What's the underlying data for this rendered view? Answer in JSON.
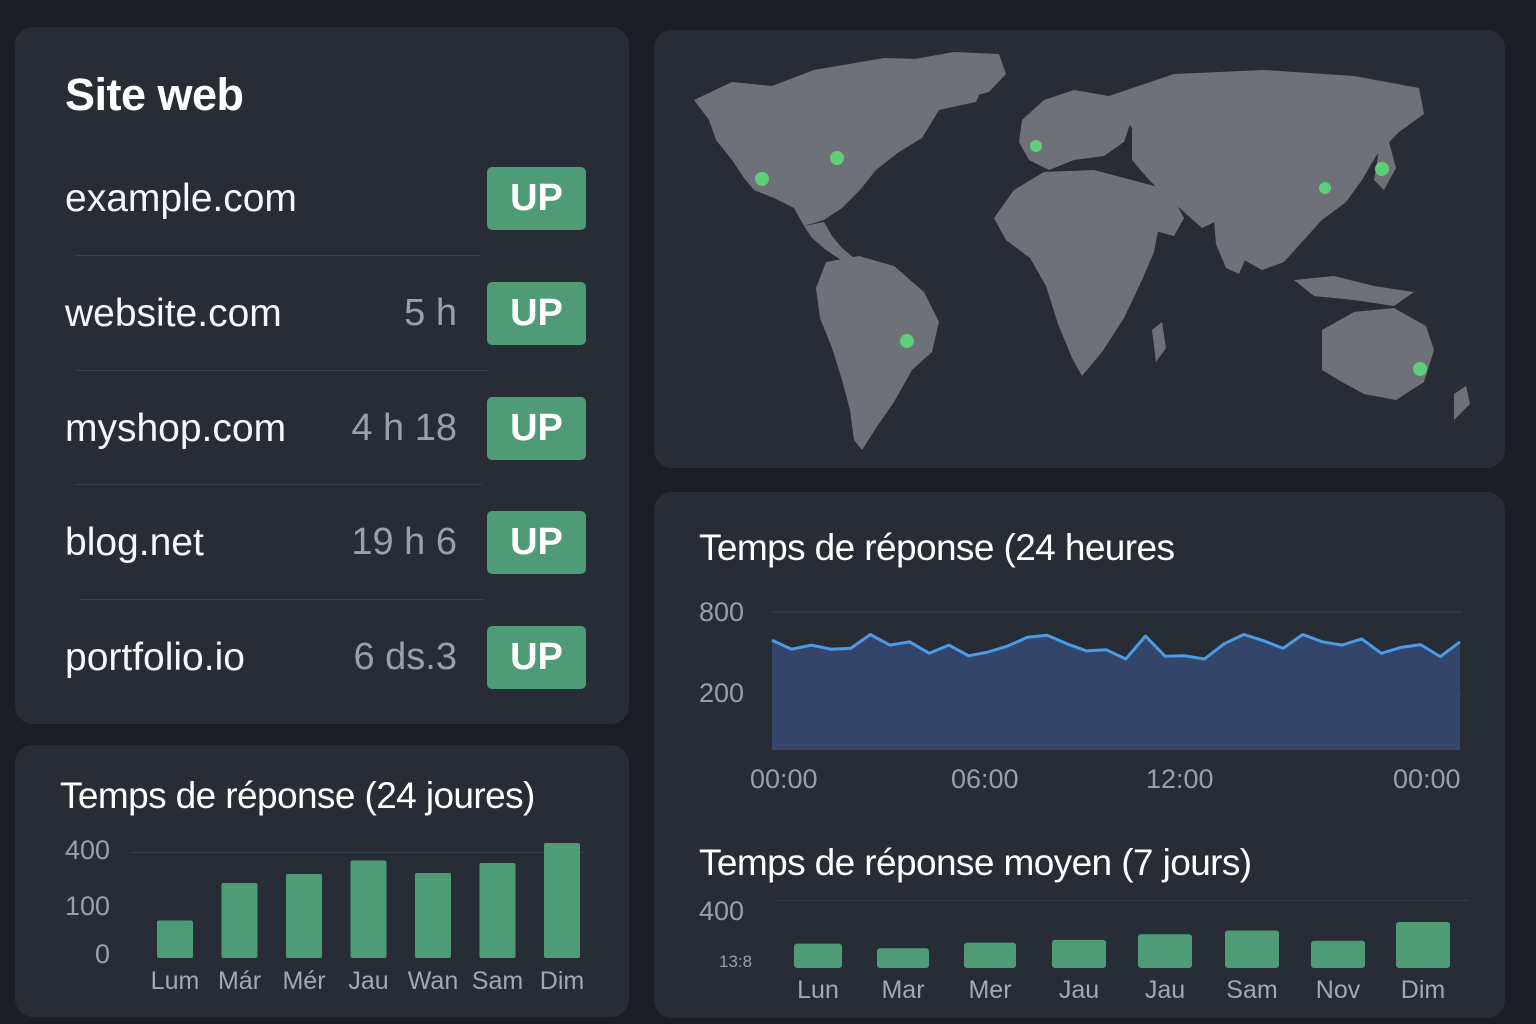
{
  "sites": {
    "title": "Site web",
    "items": [
      {
        "name": "example.com",
        "duration": "",
        "status": "UP"
      },
      {
        "name": "website.com",
        "duration": "5 h",
        "status": "UP"
      },
      {
        "name": "myshop.com",
        "duration": "4 h 18",
        "status": "UP"
      },
      {
        "name": "blog.net",
        "duration": "19 h 6",
        "status": "UP"
      },
      {
        "name": "portfolio.io",
        "duration": "6 ds.3",
        "status": "UP"
      }
    ]
  },
  "colors": {
    "background": "#1b1e24",
    "card": "#282c35",
    "up_badge": "#4f9b76",
    "bar": "#4f9b76",
    "line": "#4a9be8",
    "area": "#34456b",
    "map_land": "#6f7178",
    "map_marker": "#5fcf77"
  },
  "map": {
    "markers": [
      "north-america-west",
      "north-america-east",
      "south-america",
      "europe",
      "east-asia",
      "japan",
      "australia"
    ]
  },
  "chart_data": [
    {
      "type": "bar",
      "title": "Temps de réponse (24 joures)",
      "yticks": [
        "400",
        "100",
        "0"
      ],
      "categories": [
        "Lum",
        "Már",
        "Mér",
        "Jau",
        "Wan",
        "Sam",
        "Dim"
      ],
      "values": [
        75,
        150,
        168,
        195,
        170,
        190,
        230
      ]
    },
    {
      "type": "area",
      "title": "Temps de réponse (24 heures",
      "yticks": [
        "800",
        "200"
      ],
      "xticks": [
        "00:00",
        "06:00",
        "12:00",
        "00:00"
      ],
      "values": [
        670,
        615,
        640,
        615,
        620,
        705,
        640,
        660,
        590,
        640,
        575,
        598,
        635,
        688,
        700,
        648,
        605,
        612,
        555,
        695,
        572,
        575,
        555,
        648,
        705,
        667,
        620,
        705,
        660,
        640,
        678,
        590,
        626,
        643,
        570,
        660
      ]
    },
    {
      "type": "bar",
      "title": "Temps de réponse moyen (7 jours)",
      "yticks": [
        "400",
        "13:8"
      ],
      "categories": [
        "Lun",
        "Mar",
        "Mer",
        "Jau",
        "Jau",
        "Sam",
        "Nov",
        "Dim"
      ],
      "values": [
        130,
        105,
        135,
        150,
        180,
        200,
        145,
        245
      ]
    }
  ]
}
